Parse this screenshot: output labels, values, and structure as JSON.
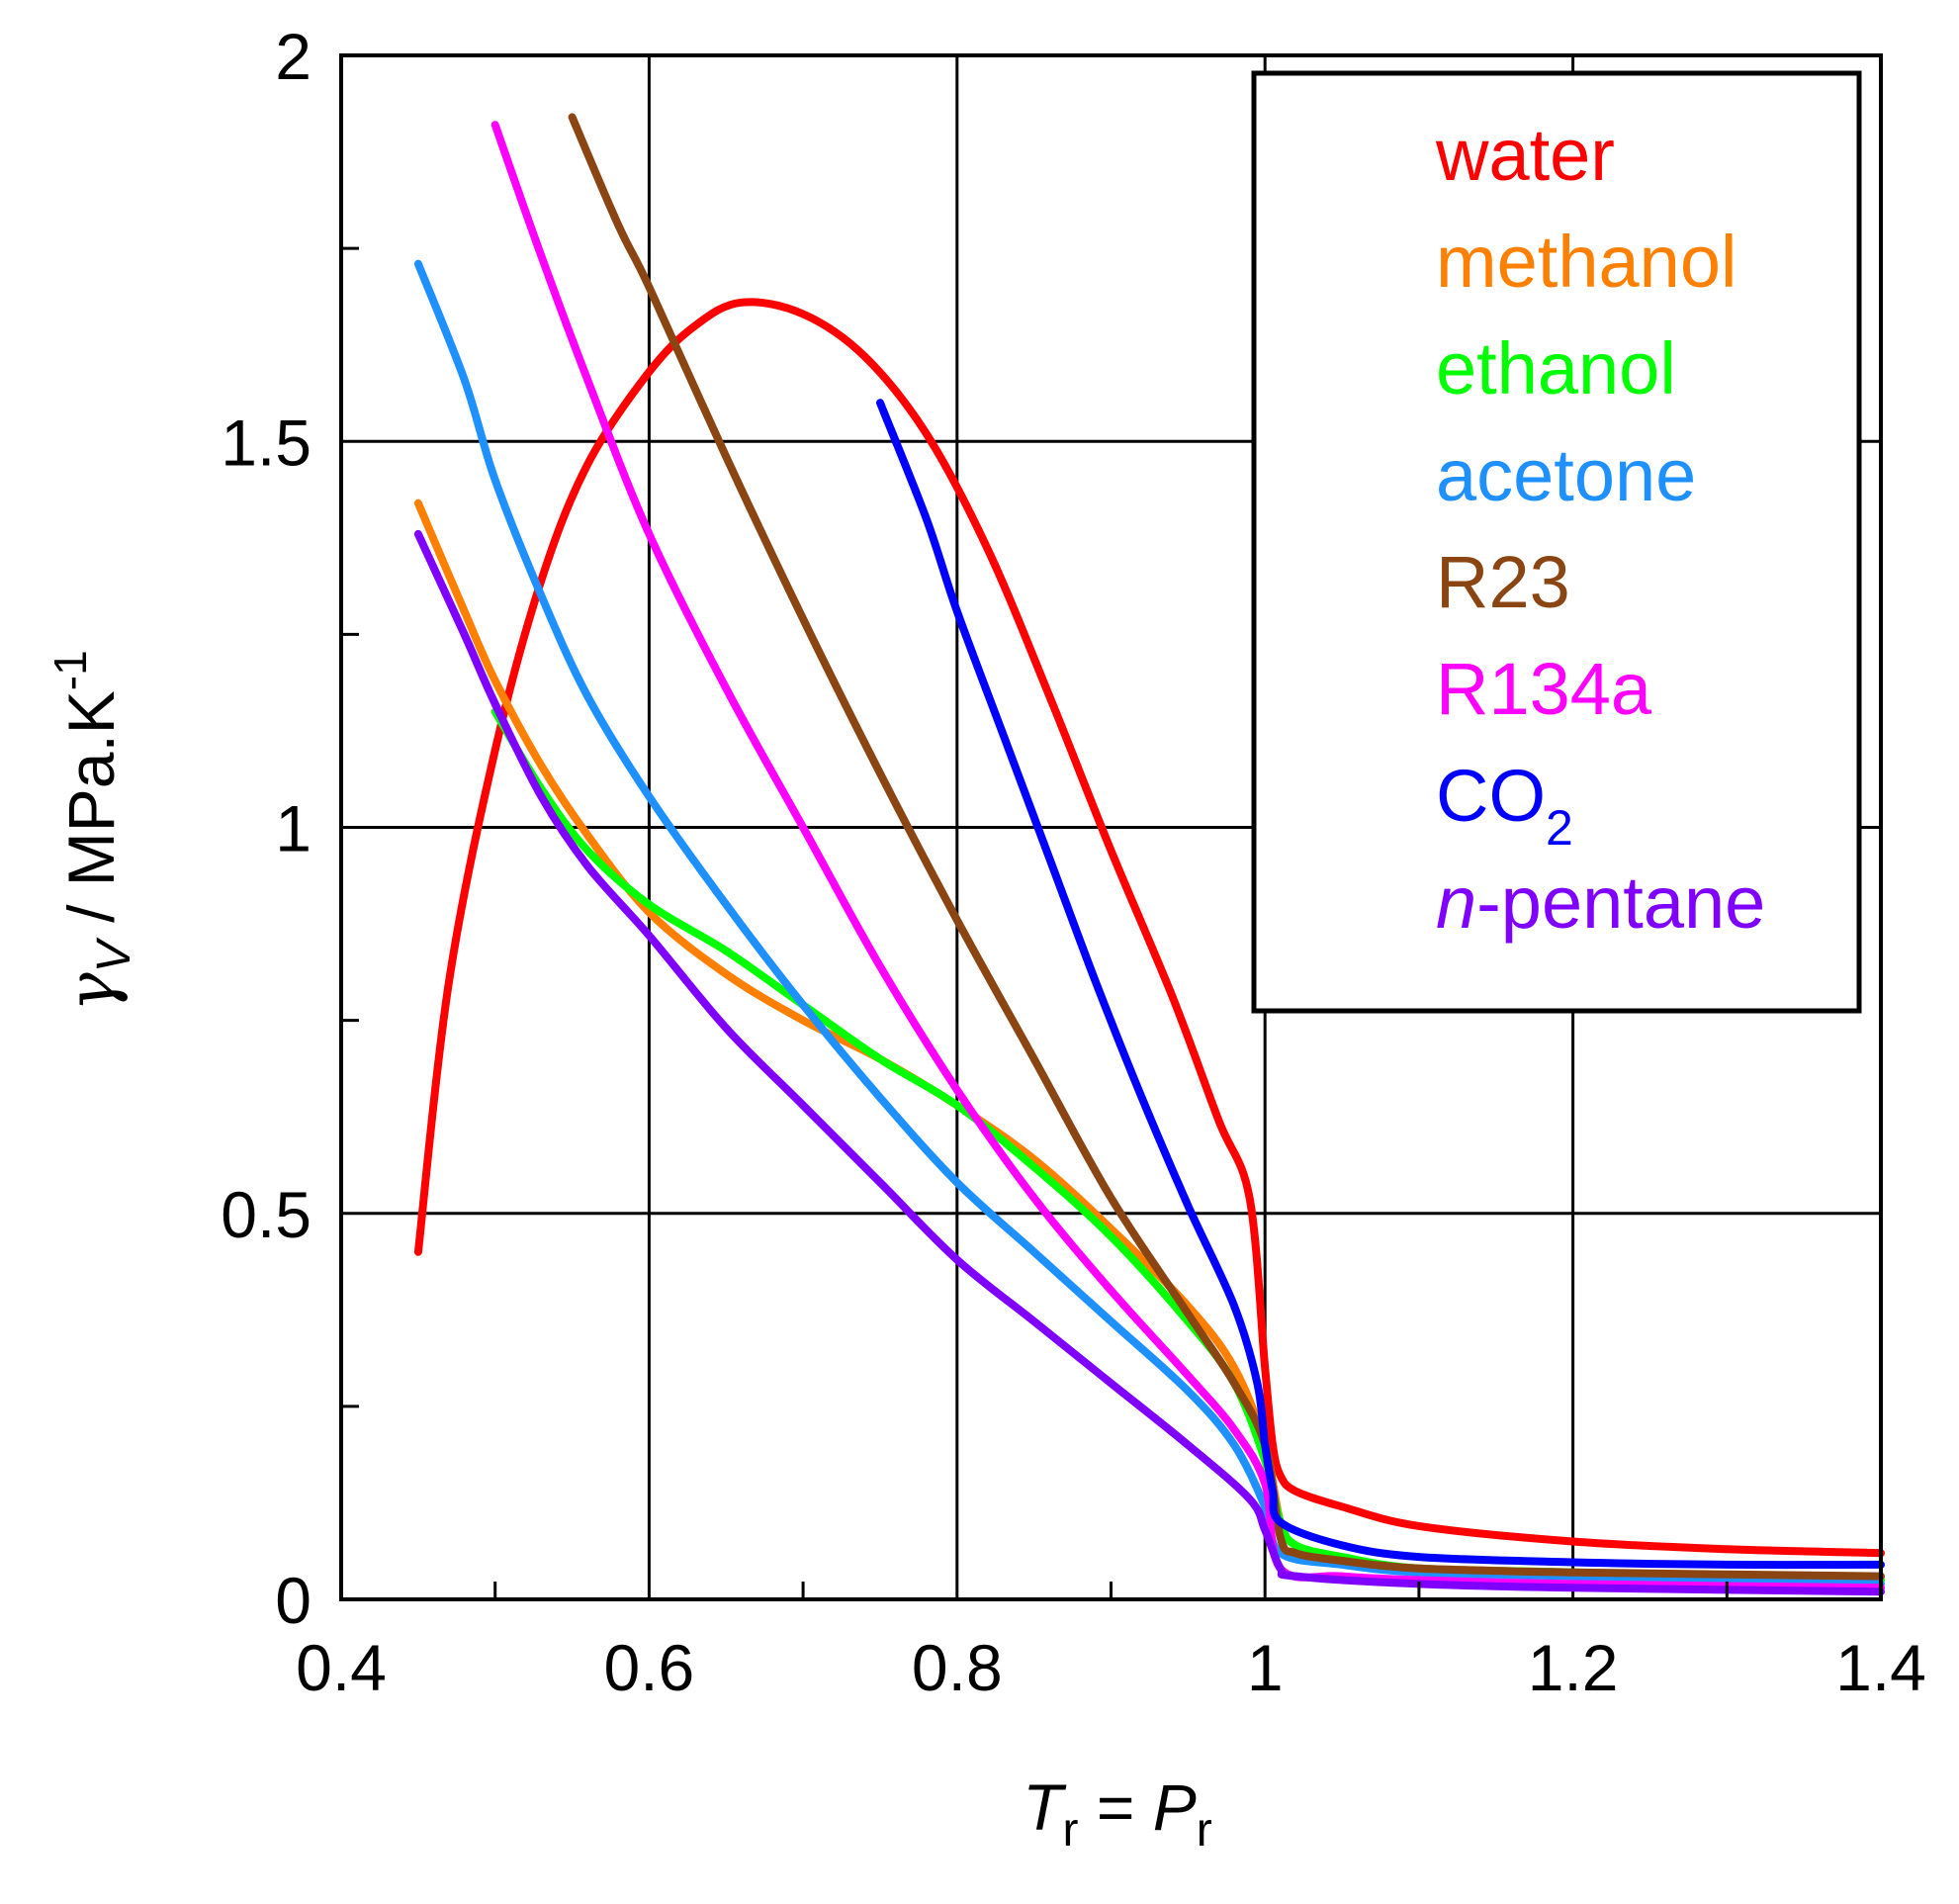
{
  "chart_data": {
    "type": "line",
    "title": "",
    "xlabel": {
      "main": "T",
      "sub": "r",
      "mid": " = ",
      "main2": "P",
      "sub2": "r"
    },
    "ylabel": {
      "symbol": "γ",
      "sub": "V",
      "unit": " / MPa.K",
      "sup": "-1"
    },
    "xlim": [
      0.4,
      1.4
    ],
    "ylim": [
      0,
      2
    ],
    "x_major_ticks": [
      0.4,
      0.6,
      0.8,
      1,
      1.2,
      1.4
    ],
    "x_tick_labels": [
      "0.4",
      "0.6",
      "0.8",
      "1",
      "1.2",
      "1.4"
    ],
    "x_minor_ticks": [
      0.5,
      0.7,
      0.9,
      1.1,
      1.3
    ],
    "y_major_ticks": [
      0,
      0.5,
      1,
      1.5,
      2
    ],
    "y_tick_labels": [
      "0",
      "0.5",
      "1",
      "1.5",
      "2"
    ],
    "y_minor_ticks": [
      0.25,
      0.75,
      1.25,
      1.75
    ],
    "grid": true,
    "legend_position": "top-right",
    "series": [
      {
        "name": "water",
        "label": "water",
        "color": "#ff0000",
        "points": [
          [
            0.45,
            0.45
          ],
          [
            0.47,
            0.8
          ],
          [
            0.5,
            1.1
          ],
          [
            0.53,
            1.32
          ],
          [
            0.56,
            1.47
          ],
          [
            0.6,
            1.59
          ],
          [
            0.63,
            1.65
          ],
          [
            0.66,
            1.68
          ],
          [
            0.7,
            1.665
          ],
          [
            0.74,
            1.61
          ],
          [
            0.78,
            1.51
          ],
          [
            0.82,
            1.36
          ],
          [
            0.86,
            1.17
          ],
          [
            0.9,
            0.97
          ],
          [
            0.94,
            0.78
          ],
          [
            0.97,
            0.62
          ],
          [
            0.99,
            0.52
          ],
          [
            1.0,
            0.3
          ],
          [
            1.005,
            0.2
          ],
          [
            1.01,
            0.16
          ],
          [
            1.02,
            0.14
          ],
          [
            1.05,
            0.12
          ],
          [
            1.1,
            0.095
          ],
          [
            1.2,
            0.075
          ],
          [
            1.3,
            0.065
          ],
          [
            1.4,
            0.06
          ]
        ]
      },
      {
        "name": "methanol",
        "label": "methanol",
        "color": "#ff8000",
        "points": [
          [
            0.45,
            1.42
          ],
          [
            0.48,
            1.28
          ],
          [
            0.5,
            1.19
          ],
          [
            0.53,
            1.08
          ],
          [
            0.56,
            0.99
          ],
          [
            0.6,
            0.89
          ],
          [
            0.65,
            0.81
          ],
          [
            0.7,
            0.75
          ],
          [
            0.75,
            0.7
          ],
          [
            0.8,
            0.64
          ],
          [
            0.85,
            0.57
          ],
          [
            0.9,
            0.48
          ],
          [
            0.95,
            0.38
          ],
          [
            0.98,
            0.3
          ],
          [
            1.0,
            0.2
          ],
          [
            1.01,
            0.1
          ],
          [
            1.02,
            0.07
          ],
          [
            1.05,
            0.05
          ],
          [
            1.1,
            0.04
          ],
          [
            1.2,
            0.035
          ],
          [
            1.4,
            0.025
          ]
        ]
      },
      {
        "name": "ethanol",
        "label": "ethanol",
        "color": "#00ff00",
        "points": [
          [
            0.5,
            1.15
          ],
          [
            0.53,
            1.05
          ],
          [
            0.56,
            0.97
          ],
          [
            0.6,
            0.9
          ],
          [
            0.65,
            0.84
          ],
          [
            0.7,
            0.77
          ],
          [
            0.75,
            0.7
          ],
          [
            0.8,
            0.64
          ],
          [
            0.85,
            0.56
          ],
          [
            0.9,
            0.47
          ],
          [
            0.95,
            0.36
          ],
          [
            0.98,
            0.28
          ],
          [
            1.0,
            0.18
          ],
          [
            1.01,
            0.1
          ],
          [
            1.02,
            0.07
          ],
          [
            1.05,
            0.055
          ],
          [
            1.1,
            0.04
          ],
          [
            1.2,
            0.035
          ],
          [
            1.4,
            0.025
          ]
        ]
      },
      {
        "name": "acetone",
        "label": "acetone",
        "color": "#1e90ff",
        "points": [
          [
            0.45,
            1.73
          ],
          [
            0.48,
            1.58
          ],
          [
            0.5,
            1.45
          ],
          [
            0.53,
            1.3
          ],
          [
            0.56,
            1.17
          ],
          [
            0.6,
            1.04
          ],
          [
            0.65,
            0.9
          ],
          [
            0.7,
            0.77
          ],
          [
            0.75,
            0.65
          ],
          [
            0.8,
            0.54
          ],
          [
            0.85,
            0.45
          ],
          [
            0.9,
            0.36
          ],
          [
            0.95,
            0.27
          ],
          [
            0.98,
            0.2
          ],
          [
            1.0,
            0.12
          ],
          [
            1.01,
            0.06
          ],
          [
            1.05,
            0.045
          ],
          [
            1.1,
            0.035
          ],
          [
            1.2,
            0.03
          ],
          [
            1.4,
            0.02
          ]
        ]
      },
      {
        "name": "R23",
        "label": "R23",
        "color": "#8b4513",
        "points": [
          [
            0.55,
            1.92
          ],
          [
            0.58,
            1.78
          ],
          [
            0.6,
            1.7
          ],
          [
            0.65,
            1.48
          ],
          [
            0.7,
            1.27
          ],
          [
            0.75,
            1.07
          ],
          [
            0.8,
            0.88
          ],
          [
            0.85,
            0.7
          ],
          [
            0.9,
            0.52
          ],
          [
            0.95,
            0.37
          ],
          [
            0.98,
            0.28
          ],
          [
            1.0,
            0.2
          ],
          [
            1.01,
            0.08
          ],
          [
            1.02,
            0.06
          ],
          [
            1.05,
            0.05
          ],
          [
            1.1,
            0.04
          ],
          [
            1.2,
            0.035
          ],
          [
            1.4,
            0.03
          ]
        ]
      },
      {
        "name": "R134a",
        "label": "R134a",
        "color": "#ff00ff",
        "points": [
          [
            0.5,
            1.91
          ],
          [
            0.53,
            1.74
          ],
          [
            0.56,
            1.58
          ],
          [
            0.6,
            1.38
          ],
          [
            0.65,
            1.18
          ],
          [
            0.7,
            1.0
          ],
          [
            0.75,
            0.82
          ],
          [
            0.8,
            0.66
          ],
          [
            0.85,
            0.52
          ],
          [
            0.9,
            0.4
          ],
          [
            0.95,
            0.29
          ],
          [
            0.98,
            0.22
          ],
          [
            1.0,
            0.15
          ],
          [
            1.01,
            0.04
          ],
          [
            1.05,
            0.03
          ],
          [
            1.1,
            0.025
          ],
          [
            1.2,
            0.02
          ],
          [
            1.4,
            0.015
          ]
        ]
      },
      {
        "name": "CO2",
        "label": "CO",
        "label_sub": "2",
        "color": "#0000ff",
        "points": [
          [
            0.75,
            1.55
          ],
          [
            0.78,
            1.4
          ],
          [
            0.8,
            1.28
          ],
          [
            0.83,
            1.12
          ],
          [
            0.86,
            0.96
          ],
          [
            0.89,
            0.8
          ],
          [
            0.92,
            0.65
          ],
          [
            0.95,
            0.51
          ],
          [
            0.98,
            0.38
          ],
          [
            0.995,
            0.28
          ],
          [
            1.0,
            0.2
          ],
          [
            1.005,
            0.14
          ],
          [
            1.01,
            0.1
          ],
          [
            1.05,
            0.07
          ],
          [
            1.1,
            0.055
          ],
          [
            1.2,
            0.048
          ],
          [
            1.3,
            0.045
          ],
          [
            1.4,
            0.045
          ]
        ]
      },
      {
        "name": "n-pentane",
        "label_italic": "n",
        "label": "-pentane",
        "color": "#8000ff",
        "points": [
          [
            0.45,
            1.38
          ],
          [
            0.48,
            1.25
          ],
          [
            0.5,
            1.16
          ],
          [
            0.53,
            1.04
          ],
          [
            0.56,
            0.95
          ],
          [
            0.6,
            0.86
          ],
          [
            0.65,
            0.74
          ],
          [
            0.7,
            0.64
          ],
          [
            0.75,
            0.54
          ],
          [
            0.8,
            0.44
          ],
          [
            0.85,
            0.36
          ],
          [
            0.9,
            0.28
          ],
          [
            0.95,
            0.2
          ],
          [
            0.99,
            0.13
          ],
          [
            1.0,
            0.09
          ],
          [
            1.01,
            0.04
          ],
          [
            1.02,
            0.03
          ],
          [
            1.1,
            0.02
          ],
          [
            1.2,
            0.015
          ],
          [
            1.4,
            0.01
          ]
        ]
      }
    ]
  }
}
